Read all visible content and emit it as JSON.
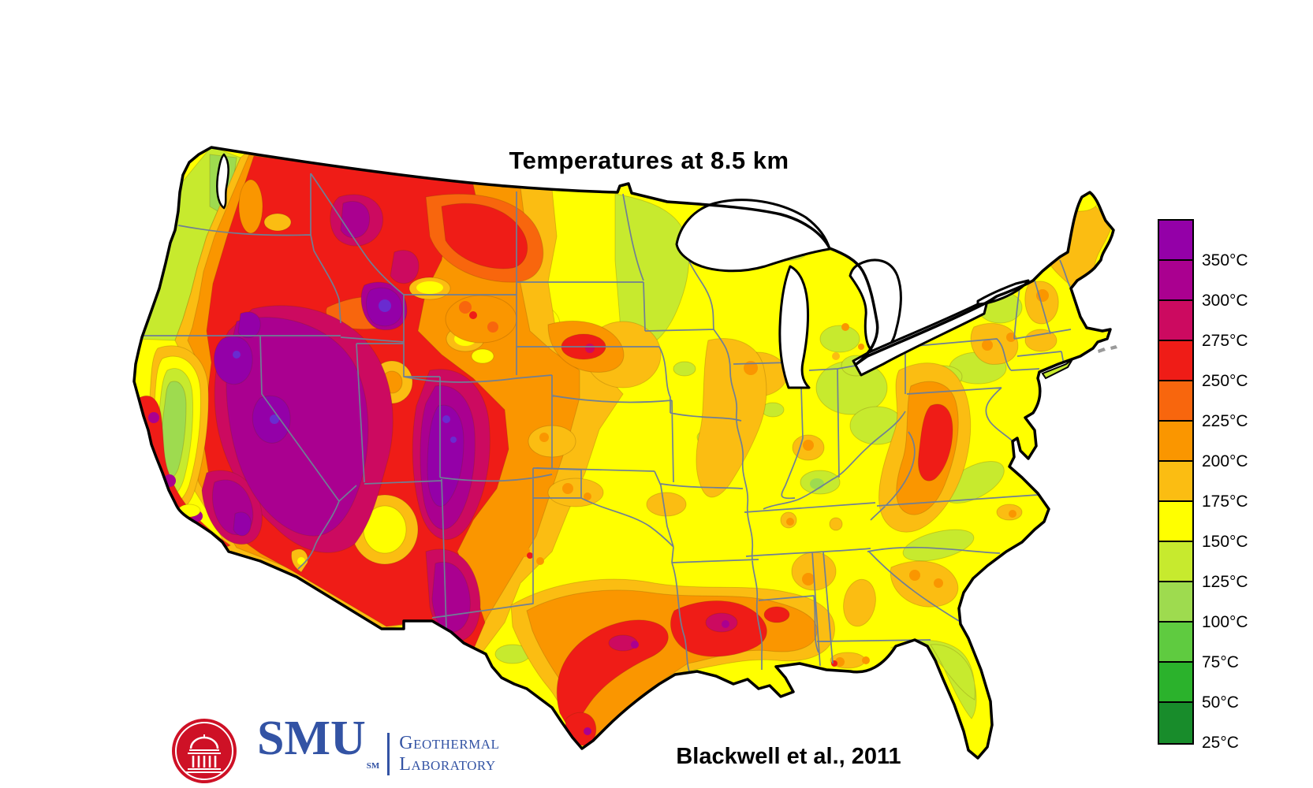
{
  "title": "Temperatures at 8.5 km",
  "citation": "Blackwell et al., 2011",
  "logo": {
    "acronym": "SMU",
    "service_mark": "SM",
    "dept_line1": "Geothermal",
    "dept_line2": "Laboratory",
    "seal_color": "#CE1126",
    "text_color": "#3353A4"
  },
  "legend": {
    "unit": "°C",
    "stops": [
      {
        "color": "#9400A8",
        "label": "350°C"
      },
      {
        "color": "#AA0090",
        "label": "300°C"
      },
      {
        "color": "#CC0A60",
        "label": "275°C"
      },
      {
        "color": "#EF1C17",
        "label": "250°C"
      },
      {
        "color": "#F8660D",
        "label": "225°C"
      },
      {
        "color": "#FA9600",
        "label": "200°C"
      },
      {
        "color": "#FBBD12",
        "label": "175°C"
      },
      {
        "color": "#FFFF00",
        "label": "150°C"
      },
      {
        "color": "#C7EA2E",
        "label": "125°C"
      },
      {
        "color": "#9EDB4F",
        "label": "100°C"
      },
      {
        "color": "#5FCB40",
        "label": "75°C"
      },
      {
        "color": "#2BB22C",
        "label": "50°C"
      },
      {
        "color": "#188C2B",
        "label": "25°C"
      }
    ]
  },
  "map": {
    "outline_color": "#000000",
    "state_line_color": "#6F7F95",
    "water_color": "#FFFFFF",
    "base_color": "#FFFF00",
    "hot_spot_color": "#6A2BD0"
  }
}
